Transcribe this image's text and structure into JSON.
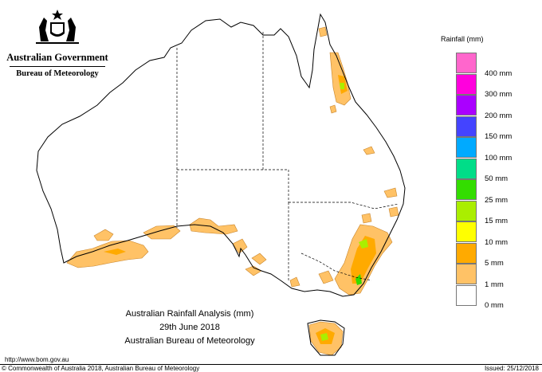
{
  "header": {
    "government": "Australian Government",
    "bureau": "Bureau of Meteorology",
    "crest_icon": "australian-coat-of-arms-icon"
  },
  "legend": {
    "title": "Rainfall (mm)",
    "items": [
      {
        "label": "",
        "color": "#ff66cc"
      },
      {
        "label": "400 mm",
        "color": "#ff00dd"
      },
      {
        "label": "300 mm",
        "color": "#aa00ff"
      },
      {
        "label": "200 mm",
        "color": "#4444ff"
      },
      {
        "label": "150 mm",
        "color": "#00aaff"
      },
      {
        "label": "100 mm",
        "color": "#00dd88"
      },
      {
        "label": "50 mm",
        "color": "#33dd00"
      },
      {
        "label": "25 mm",
        "color": "#aaee00"
      },
      {
        "label": "15 mm",
        "color": "#ffff00"
      },
      {
        "label": "10 mm",
        "color": "#ffaa00"
      },
      {
        "label": "5 mm",
        "color": "#ffc266"
      },
      {
        "label": "1 mm",
        "color": "#ffffff"
      },
      {
        "label": "0 mm",
        "color": null
      }
    ]
  },
  "caption": {
    "line1": "Australian Rainfall Analysis (mm)",
    "line2": "29th June 2018",
    "line3": "Australian Bureau of Meteorology"
  },
  "footer": {
    "url": "http://www.bom.gov.au",
    "copyright": "© Commonwealth of Australia 2018, Australian Bureau of Meteorology",
    "issued": "Issued: 25/12/2018"
  }
}
